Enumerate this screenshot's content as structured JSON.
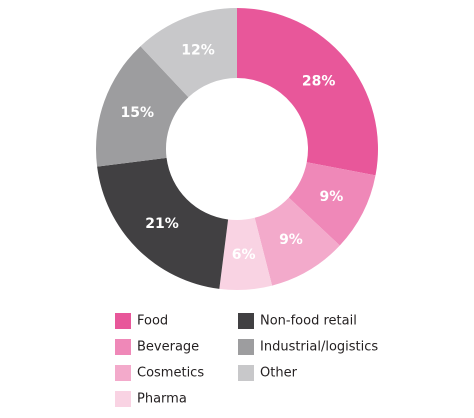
{
  "chart_data": {
    "type": "donut",
    "categories": [
      "Food",
      "Beverage",
      "Cosmetics",
      "Pharma",
      "Non-food retail",
      "Industrial/logistics",
      "Other"
    ],
    "values": [
      28,
      9,
      9,
      6,
      21,
      15,
      12
    ],
    "value_labels": [
      "28%",
      "9%",
      "9%",
      "6%",
      "21%",
      "15%",
      "12%"
    ],
    "colors": [
      "#e8579a",
      "#ef88b8",
      "#f3aacb",
      "#f9d3e3",
      "#414042",
      "#9d9d9f",
      "#c8c8ca"
    ]
  }
}
